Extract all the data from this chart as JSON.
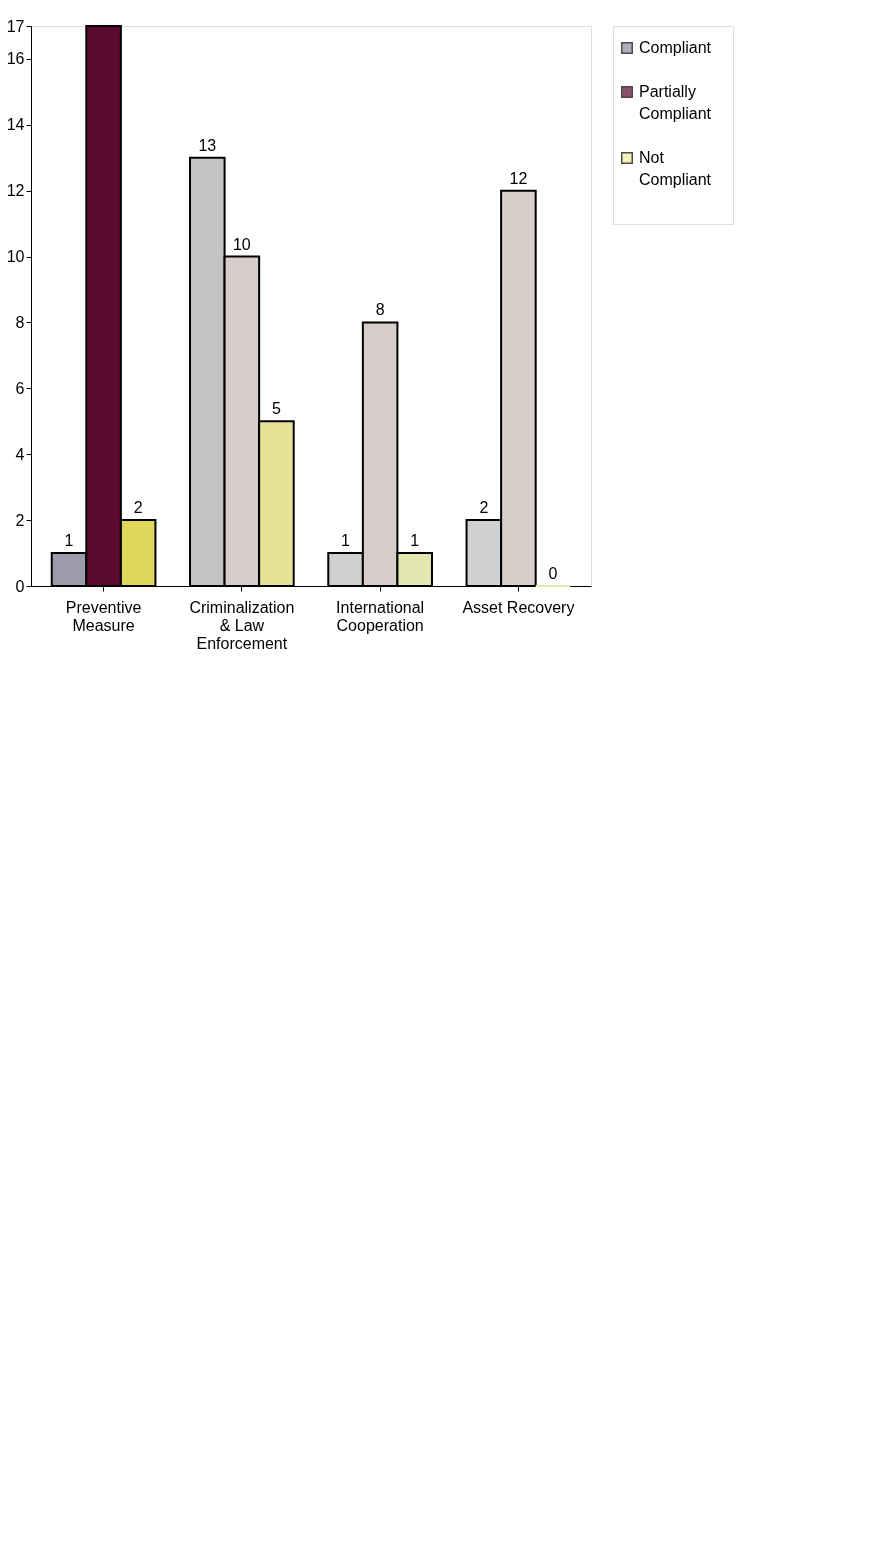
{
  "chart_data": {
    "type": "bar",
    "categories": [
      "Preventive Measure",
      "Criminalization & Law Enforcement",
      "International Cooperation",
      "Asset Recovery"
    ],
    "series": [
      {
        "name": "Compliant",
        "color": "#8e8e9c",
        "colors": [
          "#9c9cac",
          "#c4c2c4",
          "#cfcfd0",
          "#d0d0d2"
        ],
        "values": [
          1,
          13,
          1,
          2
        ],
        "value_labels": [
          "1",
          "13",
          "1",
          "2"
        ]
      },
      {
        "name": "Partially Compliant",
        "color": "#5a0a30",
        "colors": [
          "#5a0a30",
          "#d6ccca",
          "#d6ccca",
          "#d8ceca"
        ],
        "values": [
          17,
          10,
          8,
          12
        ],
        "value_labels": [
          null,
          "10",
          "8",
          "12"
        ]
      },
      {
        "name": "Not Compliant",
        "color": "#f0ee9a",
        "colors": [
          "#ddd65a",
          "#e6e494",
          "#e2e8b0",
          "#e2e8b0"
        ],
        "values": [
          2,
          5,
          1,
          0
        ],
        "value_labels": [
          "2",
          "5",
          "1",
          "0"
        ]
      }
    ],
    "ylim": [
      0,
      17
    ],
    "yticks": [
      0,
      2,
      4,
      6,
      8,
      10,
      12,
      14,
      16,
      17
    ],
    "grid": false,
    "legend": "right"
  }
}
